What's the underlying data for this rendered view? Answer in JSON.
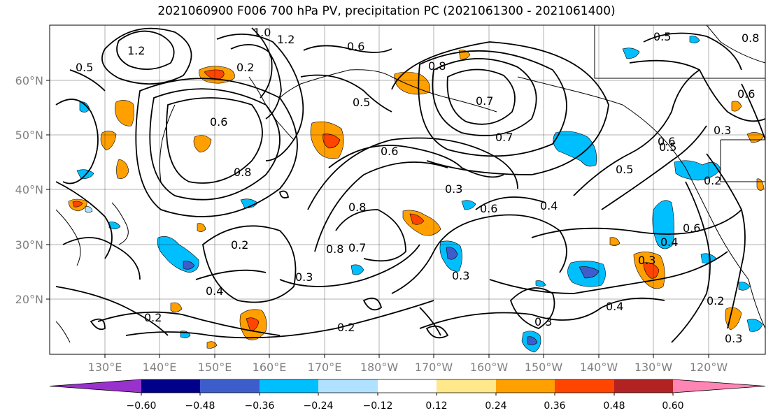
{
  "title": "2021060900 F006 700 hPa PV, precipitation PC (2021061300 - 2021061400)",
  "map": {
    "lat_ticks": [
      "60°N",
      "50°N",
      "40°N",
      "30°N",
      "20°N"
    ],
    "lon_ticks": [
      "130°E",
      "140°E",
      "150°E",
      "160°E",
      "170°E",
      "180°W",
      "170°W",
      "160°W",
      "150°W",
      "140°W",
      "130°W",
      "120°W"
    ],
    "contour_labels": [
      "1.2",
      "0.5",
      "1.0",
      "1.2",
      "0.6",
      "0.2",
      "0.6",
      "0.8",
      "0.7",
      "0.5",
      "0.7",
      "0.6",
      "0.8",
      "0.5",
      "0.8",
      "0.3",
      "0.6",
      "0.8",
      "0.7",
      "0.2",
      "0.4",
      "0.2",
      "0.2",
      "0.3",
      "0.3",
      "0.4",
      "0.6",
      "0.4",
      "0.5",
      "0.3",
      "0.6",
      "0.2",
      "0.3",
      "0.2",
      "0.3",
      "0.4",
      "0.3",
      "0.6",
      "0.5",
      "0.8"
    ]
  },
  "colorbar": {
    "tick_labels": [
      "−0.60",
      "−0.48",
      "−0.36",
      "−0.24",
      "−0.12",
      "0.12",
      "0.24",
      "0.36",
      "0.48",
      "0.60"
    ],
    "colors": [
      "#9932cc",
      "#00008b",
      "#3d5dcc",
      "#00bfff",
      "#b0e2ff",
      "#ffffff",
      "#ffe88a",
      "#ffa000",
      "#ff4500",
      "#b22222",
      "#ff85b5"
    ]
  }
}
